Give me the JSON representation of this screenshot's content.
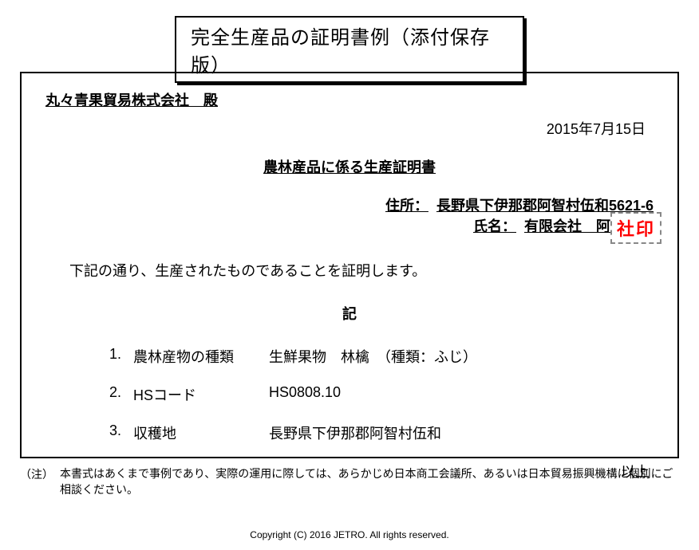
{
  "title": "完全生産品の証明書例（添付保存版）",
  "recipient": "丸々青果貿易株式会社　殿",
  "date": "2015年7月15日",
  "cert_title": "農林産品に係る生産証明書",
  "address": {
    "label": "住所：",
    "value": "長野県下伊那郡阿智村伍和5621-6"
  },
  "name": {
    "label": "氏名：",
    "value": "有限会社　阿智農園"
  },
  "seal": "社印",
  "body_line": "下記の通り、生産されたものであることを証明します。",
  "ki": "記",
  "items": [
    {
      "num": "1.",
      "label": "農林産物の種類",
      "value": "生鮮果物　林檎　（種類：ふじ）"
    },
    {
      "num": "2.",
      "label": "HSコード",
      "value": "HS0808.10"
    },
    {
      "num": "3.",
      "label": "収穫地",
      "value": "長野県下伊那郡阿智村伍和"
    }
  ],
  "ijou": "以上",
  "note": {
    "label": "（注）",
    "text": "本書式はあくまで事例であり、実際の運用に際しては、あらかじめ日本商工会議所、あるいは日本貿易振興機構に個別にご相談ください。"
  },
  "copyright": "Copyright (C) 2016 JETRO. All rights reserved.",
  "colors": {
    "text": "#000000",
    "seal_text": "#ff0000",
    "seal_border": "#888888",
    "background": "#ffffff",
    "border": "#000000"
  },
  "fontsizes": {
    "title": 24,
    "body": 18,
    "note": 14,
    "copyright": 12,
    "seal": 22
  }
}
